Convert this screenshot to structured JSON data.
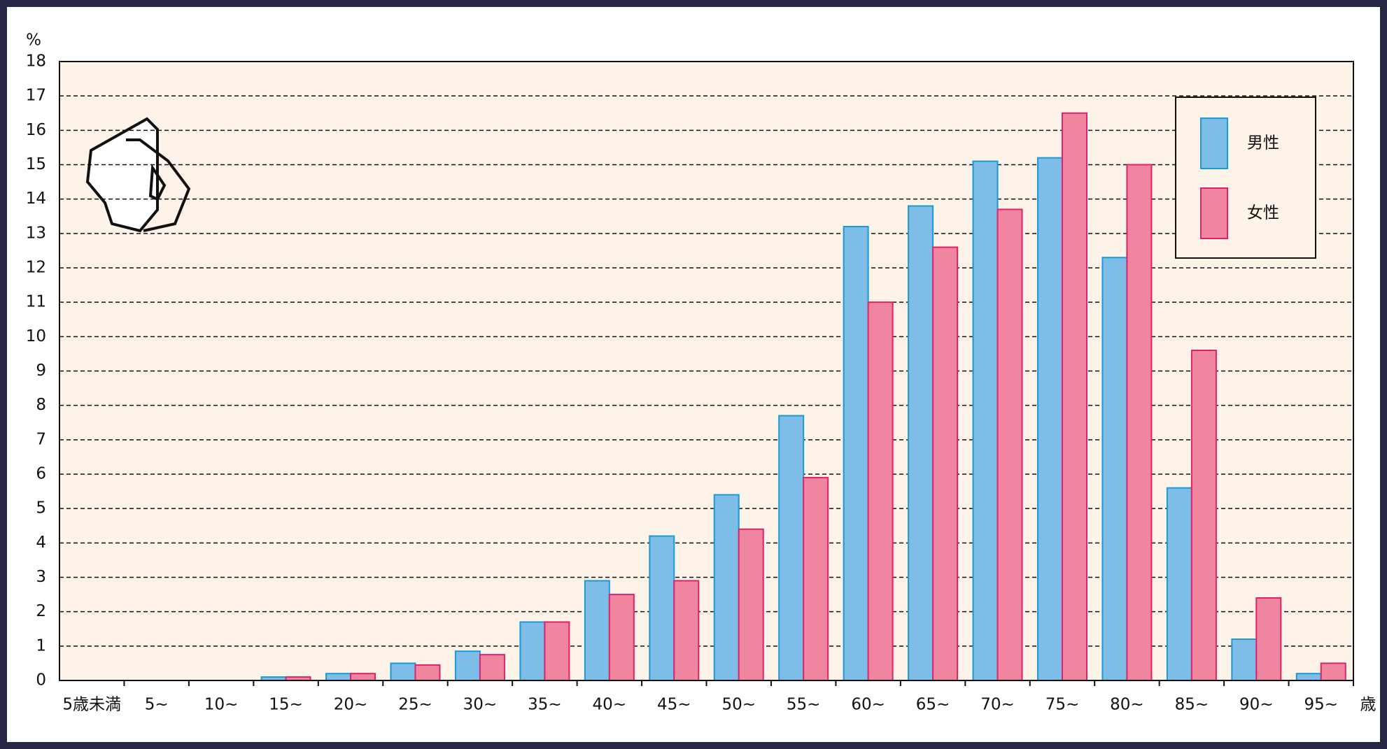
{
  "chart_data": {
    "type": "bar",
    "y_label": "%",
    "x_label": "歳",
    "categories": [
      "5歳未満",
      "5~",
      "10~",
      "15~",
      "20~",
      "25~",
      "30~",
      "35~",
      "40~",
      "45~",
      "50~",
      "55~",
      "60~",
      "65~",
      "70~",
      "75~",
      "80~",
      "85~",
      "90~",
      "95~"
    ],
    "series": [
      {
        "name": "男性",
        "color": "#7dbde8",
        "edge": "#1a9ad6",
        "values": [
          0,
          0,
          0,
          0.1,
          0.2,
          0.5,
          0.85,
          1.7,
          2.9,
          4.2,
          5.4,
          7.7,
          13.2,
          13.8,
          15.1,
          15.2,
          12.3,
          5.6,
          1.2,
          0.2
        ]
      },
      {
        "name": "女性",
        "color": "#ef859f",
        "edge": "#e0226a",
        "values": [
          0,
          0,
          0,
          0.1,
          0.2,
          0.45,
          0.75,
          1.7,
          2.5,
          2.9,
          4.4,
          5.9,
          11.0,
          12.6,
          13.7,
          16.5,
          15.0,
          9.6,
          2.4,
          0.5
        ]
      }
    ],
    "ylim": [
      0,
      18
    ],
    "yticks": [
      0,
      1,
      2,
      3,
      4,
      5,
      6,
      7,
      8,
      9,
      10,
      11,
      12,
      13,
      14,
      15,
      16,
      17,
      18
    ],
    "grid": true,
    "legend": "top-right"
  }
}
